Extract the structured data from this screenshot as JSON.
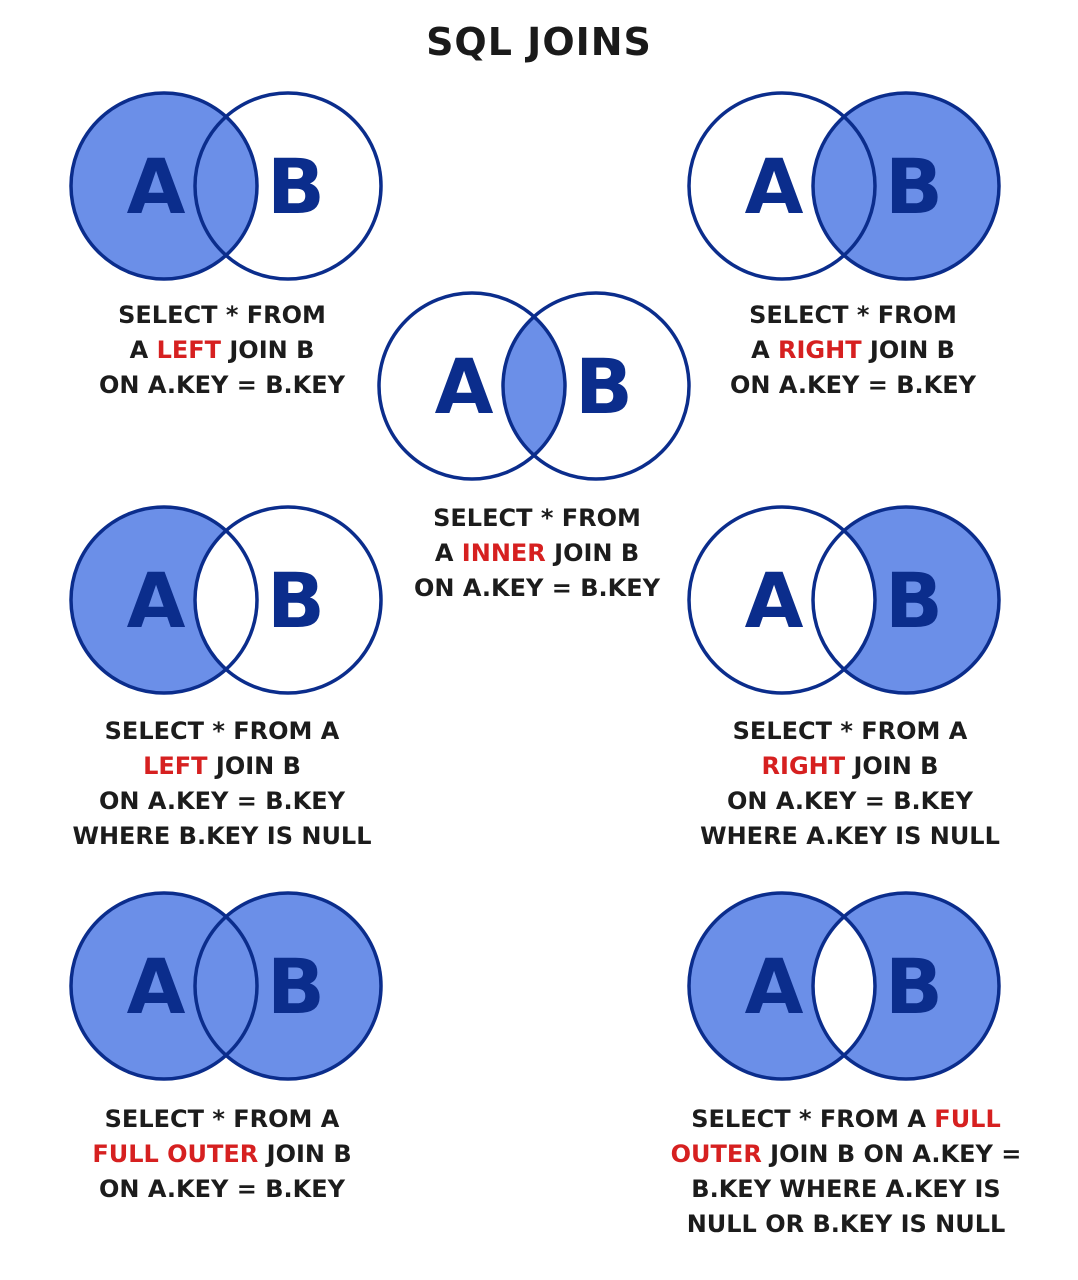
{
  "title": "SQL JOINS",
  "colors": {
    "fill": "#6b8fe8",
    "stroke": "#0b2d8c",
    "keyword": "#d62020",
    "letters": "#0b2d8c"
  },
  "joins": [
    {
      "id": "left-join",
      "circle_a": "A",
      "circle_b": "B",
      "shaded": [
        "a-only",
        "intersection"
      ],
      "caption": [
        [
          {
            "t": "SELECT * FROM"
          }
        ],
        [
          {
            "t": "A "
          },
          {
            "t": "LEFT",
            "kw": true
          },
          {
            "t": " JOIN B"
          }
        ],
        [
          {
            "t": "ON A.KEY = B.KEY"
          }
        ]
      ]
    },
    {
      "id": "inner-join",
      "circle_a": "A",
      "circle_b": "B",
      "shaded": [
        "intersection"
      ],
      "caption": [
        [
          {
            "t": "SELECT * FROM"
          }
        ],
        [
          {
            "t": "A "
          },
          {
            "t": "INNER",
            "kw": true
          },
          {
            "t": " JOIN B"
          }
        ],
        [
          {
            "t": "ON A.KEY = B.KEY"
          }
        ]
      ]
    },
    {
      "id": "right-join",
      "circle_a": "A",
      "circle_b": "B",
      "shaded": [
        "b-only",
        "intersection"
      ],
      "caption": [
        [
          {
            "t": "SELECT * FROM"
          }
        ],
        [
          {
            "t": "A "
          },
          {
            "t": "RIGHT",
            "kw": true
          },
          {
            "t": " JOIN B"
          }
        ],
        [
          {
            "t": "ON A.KEY = B.KEY"
          }
        ]
      ]
    },
    {
      "id": "left-join-null",
      "circle_a": "A",
      "circle_b": "B",
      "shaded": [
        "a-only"
      ],
      "caption": [
        [
          {
            "t": "SELECT * FROM A"
          }
        ],
        [
          {
            "t": "LEFT",
            "kw": true
          },
          {
            "t": " JOIN B"
          }
        ],
        [
          {
            "t": "ON A.KEY = B.KEY"
          }
        ],
        [
          {
            "t": "WHERE B.KEY IS NULL"
          }
        ]
      ]
    },
    {
      "id": "right-join-null",
      "circle_a": "A",
      "circle_b": "B",
      "shaded": [
        "b-only"
      ],
      "caption": [
        [
          {
            "t": "SELECT * FROM A"
          }
        ],
        [
          {
            "t": "RIGHT",
            "kw": true
          },
          {
            "t": " JOIN B"
          }
        ],
        [
          {
            "t": "ON A.KEY = B.KEY"
          }
        ],
        [
          {
            "t": "WHERE A.KEY IS NULL"
          }
        ]
      ]
    },
    {
      "id": "full-outer-join",
      "circle_a": "A",
      "circle_b": "B",
      "shaded": [
        "a-only",
        "intersection",
        "b-only"
      ],
      "caption": [
        [
          {
            "t": "SELECT * FROM A"
          }
        ],
        [
          {
            "t": "FULL OUTER",
            "kw": true
          },
          {
            "t": " JOIN B"
          }
        ],
        [
          {
            "t": "ON A.KEY = B.KEY"
          }
        ]
      ]
    },
    {
      "id": "full-outer-join-null",
      "circle_a": "A",
      "circle_b": "B",
      "shaded": [
        "a-only",
        "b-only"
      ],
      "caption": [
        [
          {
            "t": "SELECT * FROM A "
          },
          {
            "t": "FULL",
            "kw": true
          }
        ],
        [
          {
            "t": "OUTER",
            "kw": true
          },
          {
            "t": " JOIN B ON A.KEY ="
          }
        ],
        [
          {
            "t": "B.KEY WHERE A.KEY IS"
          }
        ],
        [
          {
            "t": "NULL OR B.KEY IS NULL"
          }
        ]
      ]
    }
  ]
}
